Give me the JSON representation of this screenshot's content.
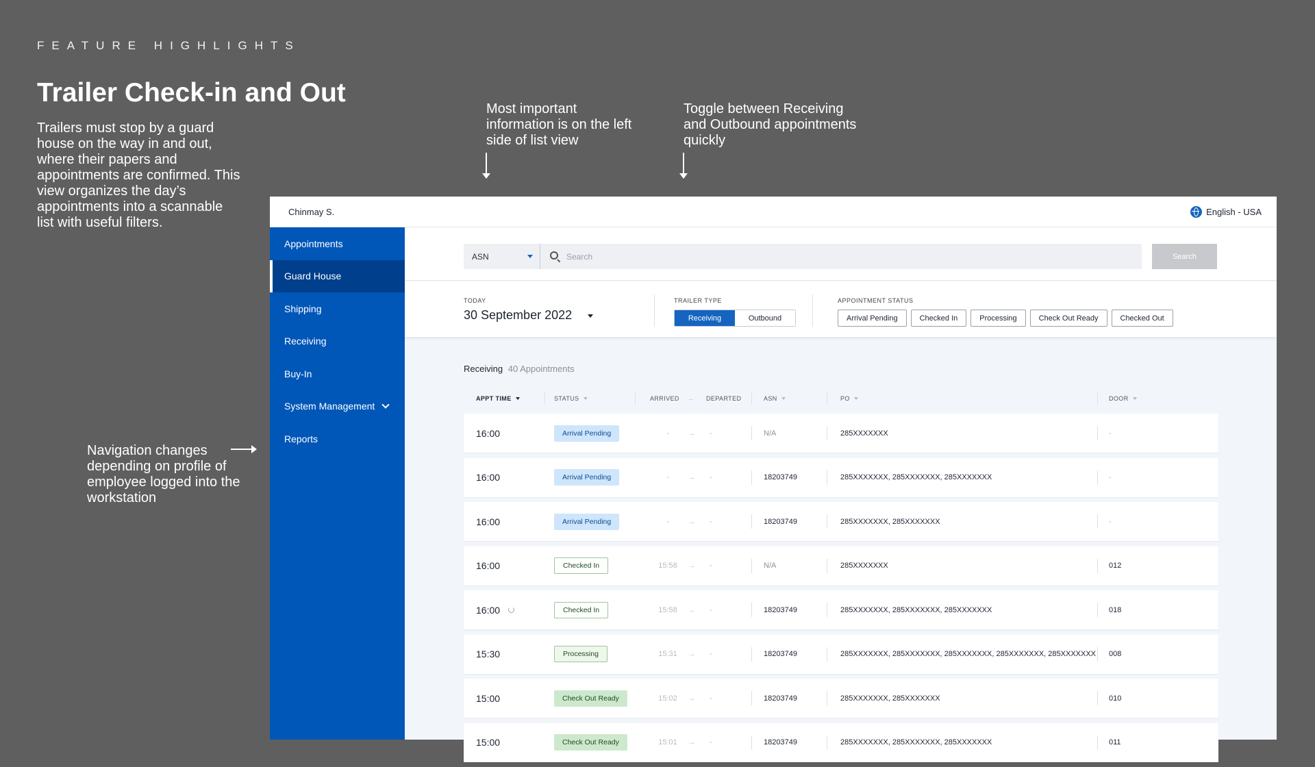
{
  "slide": {
    "eyebrow": "FEATURE HIGHLIGHTS",
    "title": "Trailer Check-in and Out",
    "description": "Trailers must stop by a guard house on the way in and out, where their papers and appointments are confirmed. This view organizes the day’s appointments into a scannable list with useful filters.",
    "note_left_info": "Most important information is on the left side of list view",
    "note_toggle": "Toggle between Receiving and Outbound appointments quickly",
    "note_nav": "Navigation changes depending on profile of employee logged into the workstation"
  },
  "topbar": {
    "user": "Chinmay S.",
    "language": "English - USA",
    "icon": "globe-icon"
  },
  "sidebar": {
    "items": [
      {
        "label": "Appointments"
      },
      {
        "label": "Guard House"
      },
      {
        "label": "Shipping"
      },
      {
        "label": "Receiving"
      },
      {
        "label": "Buy-In"
      },
      {
        "label": "System Management"
      },
      {
        "label": "Reports"
      }
    ],
    "active": "Guard House"
  },
  "search": {
    "field": "ASN",
    "placeholder": "Search",
    "button": "Search"
  },
  "filters": {
    "today_label": "TODAY",
    "date": "30 September 2022",
    "trailer_type_label": "TRAILER TYPE",
    "trailer_types": [
      "Receiving",
      "Outbound"
    ],
    "selected_trailer_type": "Receiving",
    "appointment_status_label": "APPOINTMENT STATUS",
    "statuses": [
      "Arrival Pending",
      "Checked In",
      "Processing",
      "Check Out Ready",
      "Checked Out"
    ]
  },
  "list": {
    "title": "Receiving",
    "count": "40 Appointments",
    "columns": {
      "appt_time": "APPT TIME",
      "status": "STATUS",
      "arrived": "ARRIVED",
      "departed": "DEPARTED",
      "asn": "ASN",
      "po": "PO",
      "door": "DOOR"
    },
    "rows": [
      {
        "time": "16:00",
        "status": "Arrival Pending",
        "arrived": "-",
        "departed": "-",
        "asn": "N/A",
        "po": "285XXXXXXX",
        "door": "-"
      },
      {
        "time": "16:00",
        "status": "Arrival Pending",
        "arrived": "-",
        "departed": "-",
        "asn": "18203749",
        "po": "285XXXXXXX, 285XXXXXXX, 285XXXXXXX",
        "door": "-"
      },
      {
        "time": "16:00",
        "status": "Arrival Pending",
        "arrived": "-",
        "departed": "-",
        "asn": "18203749",
        "po": "285XXXXXXX, 285XXXXXXX",
        "door": "-"
      },
      {
        "time": "16:00",
        "status": "Checked In",
        "arrived": "15:58",
        "departed": "-",
        "asn": "N/A",
        "po": "285XXXXXXX",
        "door": "012"
      },
      {
        "time": "16:00",
        "status": "Checked In",
        "arrived": "15:58",
        "departed": "-",
        "asn": "18203749",
        "po": "285XXXXXXX, 285XXXXXXX, 285XXXXXXX",
        "door": "018",
        "sync": true
      },
      {
        "time": "15:30",
        "status": "Processing",
        "arrived": "15:31",
        "departed": "-",
        "asn": "18203749",
        "po": "285XXXXXXX, 285XXXXXXX, 285XXXXXXX, 285XXXXXXX, 285XXXXXXX",
        "door": "008"
      },
      {
        "time": "15:00",
        "status": "Check Out Ready",
        "arrived": "15:02",
        "departed": "-",
        "asn": "18203749",
        "po": "285XXXXXXX, 285XXXXXXX",
        "door": "010"
      },
      {
        "time": "15:00",
        "status": "Check Out Ready",
        "arrived": "15:01",
        "departed": "-",
        "asn": "18203749",
        "po": "285XXXXXXX, 285XXXXXXX, 285XXXXXXX",
        "door": "011"
      }
    ]
  },
  "colors": {
    "sidebar": "#0057b8",
    "sidebar_active": "#003f8c",
    "accent": "#1565c0",
    "pending_badge": "#cfe5fb",
    "ready_badge": "#cde9cd",
    "slide_background": "#5f5f5f"
  }
}
